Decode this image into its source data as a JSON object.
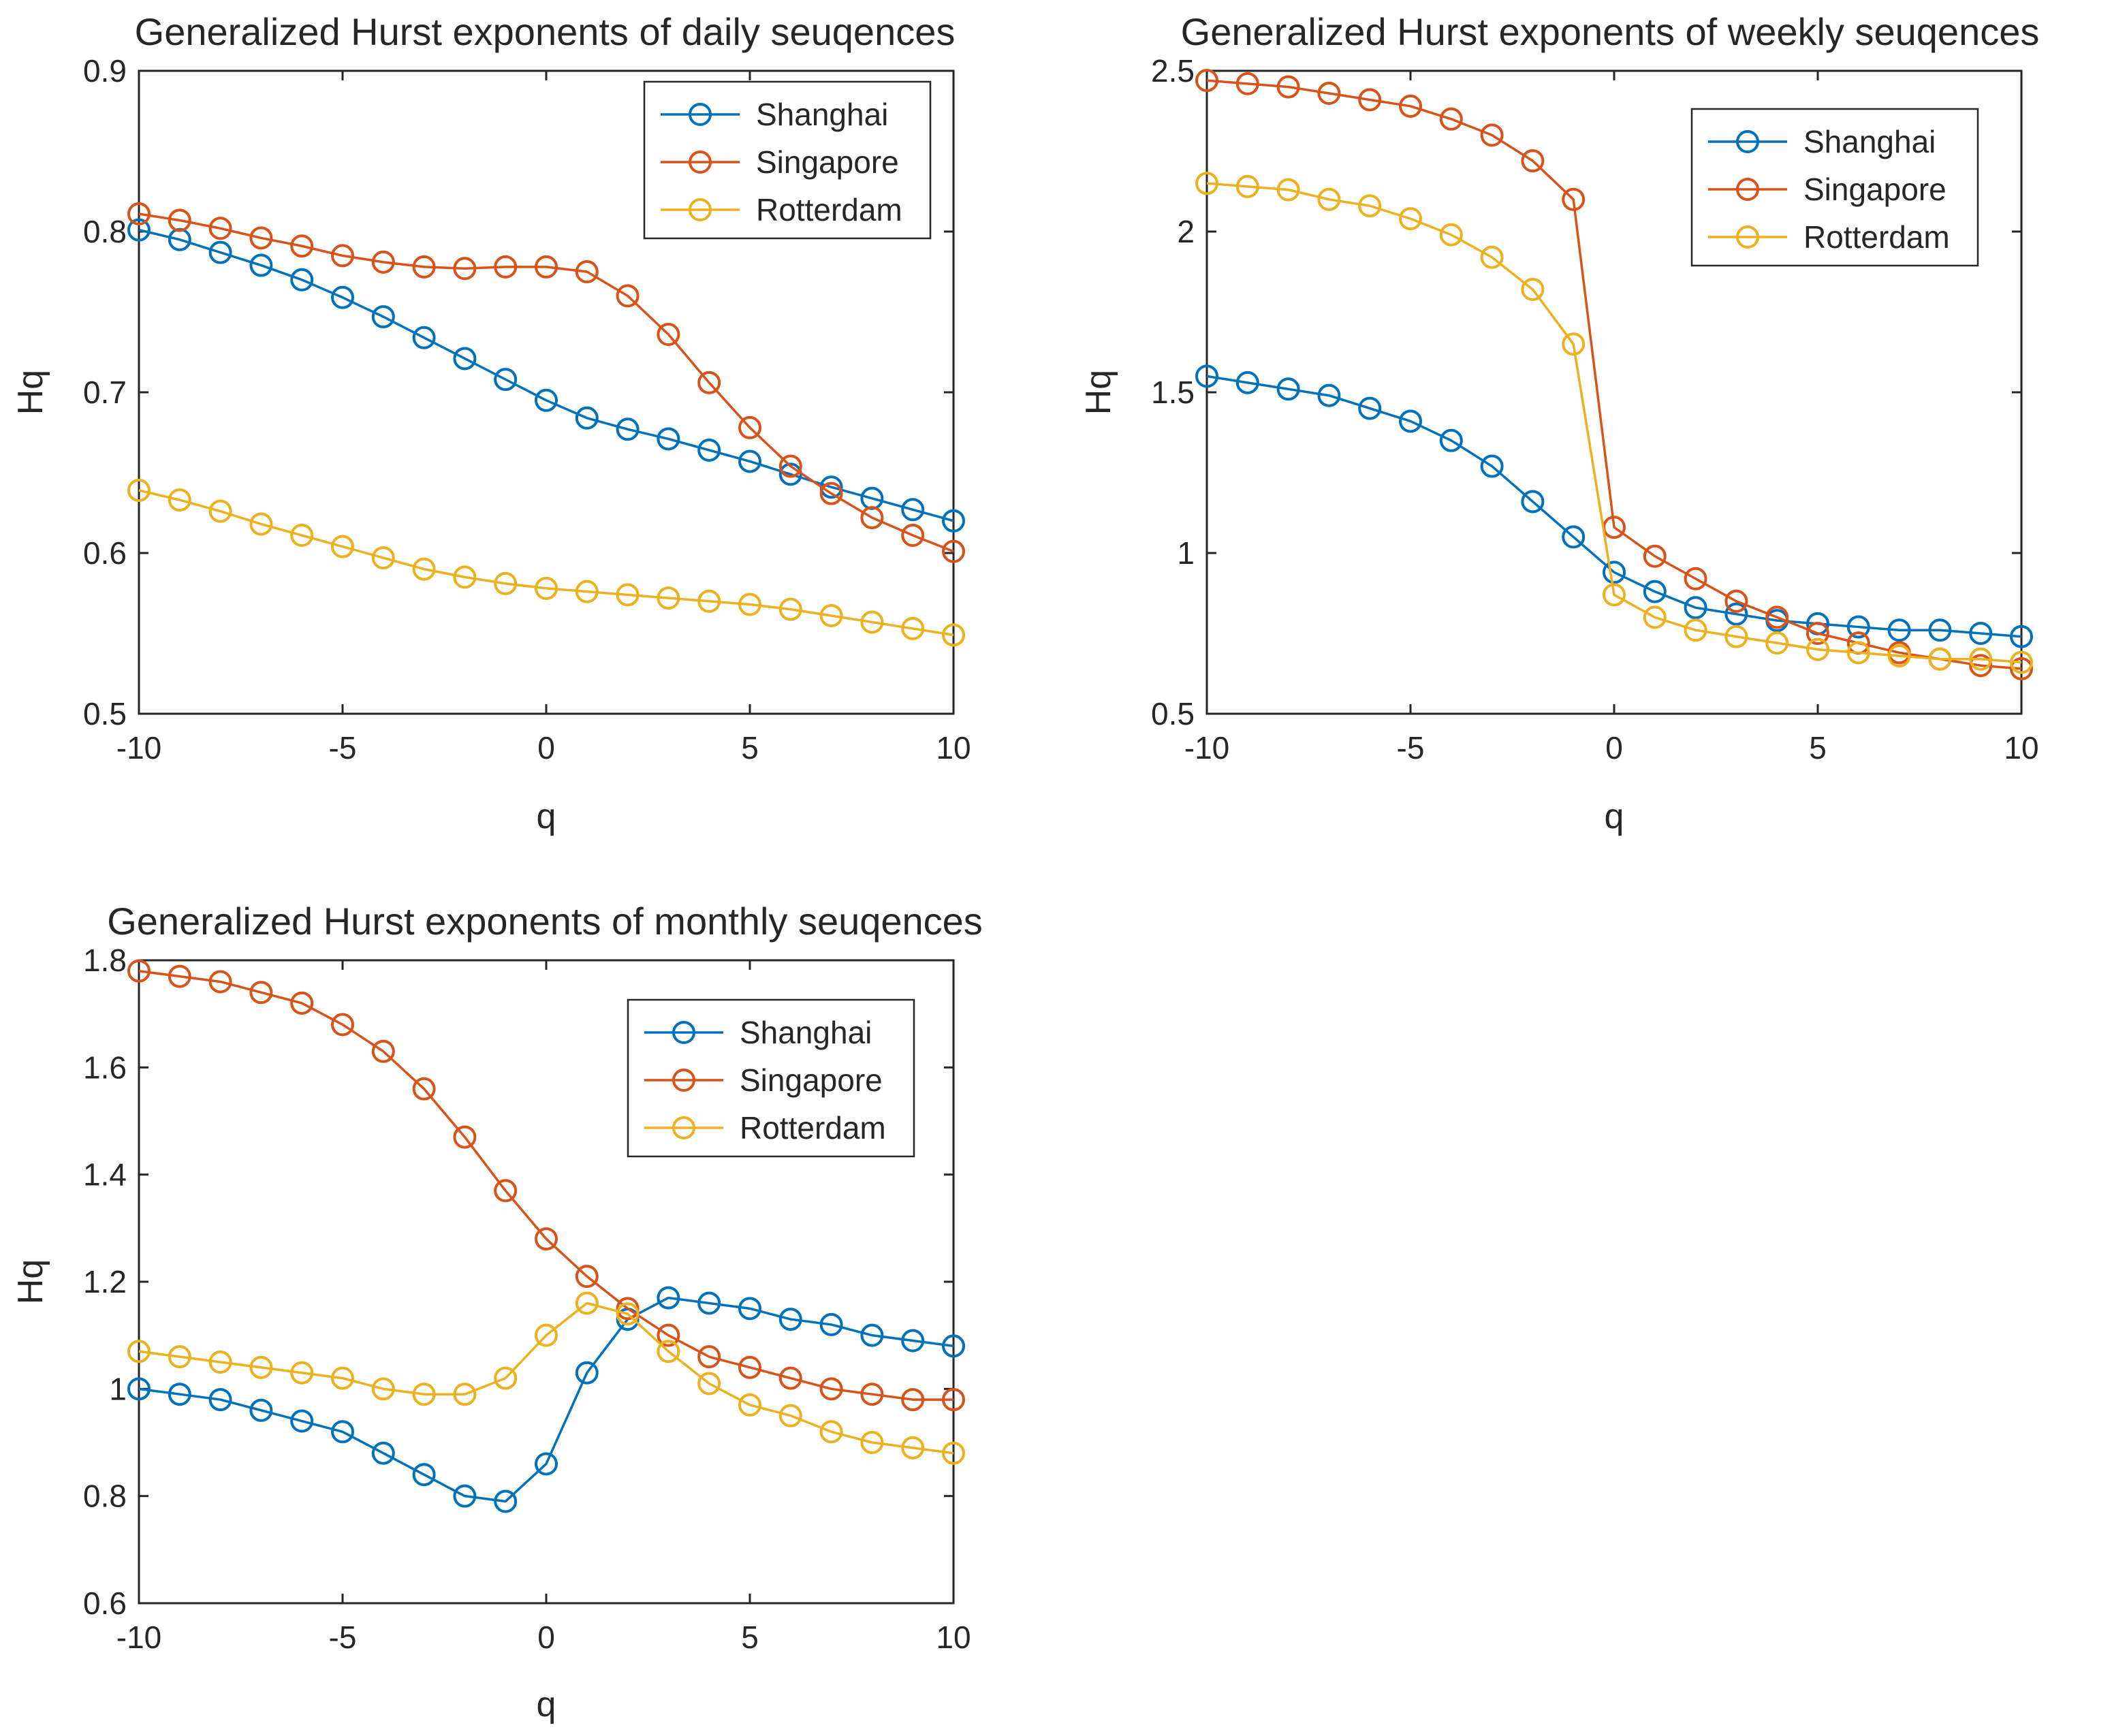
{
  "colors": {
    "shanghai": "#0072BD",
    "singapore": "#D95319",
    "rotterdam": "#EDB120",
    "axis": "#262626",
    "background": "#ffffff"
  },
  "chart_data": [
    {
      "id": "daily",
      "type": "line",
      "marker": "circle",
      "title": "Generalized Hurst exponents of daily seuqences",
      "xlabel": "q",
      "ylabel": "Hq",
      "xlim": [
        -10,
        10
      ],
      "ylim": [
        0.5,
        0.9
      ],
      "xticks": [
        -10,
        -5,
        0,
        5,
        10
      ],
      "xtick_labels": [
        "-10",
        "-5",
        "0",
        "5",
        "10"
      ],
      "yticks": [
        0.5,
        0.6,
        0.7,
        0.8,
        0.9
      ],
      "ytick_labels": [
        "0.5",
        "0.6",
        "0.7",
        "0.8",
        "0.9"
      ],
      "grid": false,
      "legend_position": "top-right",
      "x": [
        -10,
        -9,
        -8,
        -7,
        -6,
        -5,
        -4,
        -3,
        -2,
        -1,
        0,
        1,
        2,
        3,
        4,
        5,
        6,
        7,
        8,
        9,
        10
      ],
      "series": [
        {
          "name": "Shanghai",
          "color_key": "shanghai",
          "values": [
            0.801,
            0.795,
            0.787,
            0.779,
            0.77,
            0.759,
            0.747,
            0.734,
            0.721,
            0.708,
            0.695,
            0.684,
            0.677,
            0.671,
            0.664,
            0.657,
            0.649,
            0.641,
            0.634,
            0.627,
            0.62
          ]
        },
        {
          "name": "Singapore",
          "color_key": "singapore",
          "values": [
            0.811,
            0.807,
            0.802,
            0.796,
            0.791,
            0.785,
            0.781,
            0.778,
            0.777,
            0.778,
            0.778,
            0.775,
            0.76,
            0.736,
            0.706,
            0.678,
            0.654,
            0.637,
            0.622,
            0.611,
            0.601
          ]
        },
        {
          "name": "Rotterdam",
          "color_key": "rotterdam",
          "values": [
            0.639,
            0.633,
            0.626,
            0.618,
            0.611,
            0.604,
            0.597,
            0.59,
            0.585,
            0.581,
            0.578,
            0.576,
            0.574,
            0.572,
            0.57,
            0.568,
            0.565,
            0.561,
            0.557,
            0.553,
            0.549
          ]
        }
      ]
    },
    {
      "id": "weekly",
      "type": "line",
      "marker": "circle",
      "title": "Generalized Hurst exponents of weekly seuqences",
      "xlabel": "q",
      "ylabel": "Hq",
      "xlim": [
        -10,
        10
      ],
      "ylim": [
        0.5,
        2.5
      ],
      "xticks": [
        -10,
        -5,
        0,
        5,
        10
      ],
      "xtick_labels": [
        "-10",
        "-5",
        "0",
        "5",
        "10"
      ],
      "yticks": [
        0.5,
        1,
        1.5,
        2,
        2.5
      ],
      "ytick_labels": [
        "0.5",
        "1",
        "1.5",
        "2",
        "2.5"
      ],
      "grid": false,
      "legend_position": "top-right",
      "x": [
        -10,
        -9,
        -8,
        -7,
        -6,
        -5,
        -4,
        -3,
        -2,
        -1,
        0,
        1,
        2,
        3,
        4,
        5,
        6,
        7,
        8,
        9,
        10
      ],
      "series": [
        {
          "name": "Shanghai",
          "color_key": "shanghai",
          "values": [
            1.55,
            1.53,
            1.51,
            1.49,
            1.45,
            1.41,
            1.35,
            1.27,
            1.16,
            1.05,
            0.94,
            0.88,
            0.83,
            0.81,
            0.79,
            0.78,
            0.77,
            0.76,
            0.76,
            0.75,
            0.74
          ]
        },
        {
          "name": "Singapore",
          "color_key": "singapore",
          "values": [
            2.47,
            2.46,
            2.45,
            2.43,
            2.41,
            2.39,
            2.35,
            2.3,
            2.22,
            2.1,
            1.08,
            0.99,
            0.92,
            0.85,
            0.8,
            0.75,
            0.72,
            0.69,
            0.67,
            0.65,
            0.64
          ]
        },
        {
          "name": "Rotterdam",
          "color_key": "rotterdam",
          "values": [
            2.15,
            2.14,
            2.13,
            2.1,
            2.08,
            2.04,
            1.99,
            1.92,
            1.82,
            1.65,
            0.87,
            0.8,
            0.76,
            0.74,
            0.72,
            0.7,
            0.69,
            0.68,
            0.67,
            0.67,
            0.66
          ]
        }
      ]
    },
    {
      "id": "monthly",
      "type": "line",
      "marker": "circle",
      "title": "Generalized Hurst exponents of monthly seuqences",
      "xlabel": "q",
      "ylabel": "Hq",
      "xlim": [
        -10,
        10
      ],
      "ylim": [
        0.6,
        1.8
      ],
      "xticks": [
        -10,
        -5,
        0,
        5,
        10
      ],
      "xtick_labels": [
        "-10",
        "-5",
        "0",
        "5",
        "10"
      ],
      "yticks": [
        0.6,
        0.8,
        1,
        1.2,
        1.4,
        1.6,
        1.8
      ],
      "ytick_labels": [
        "0.6",
        "0.8",
        "1",
        "1.2",
        "1.4",
        "1.6",
        "1.8"
      ],
      "grid": false,
      "legend_position": "top-right",
      "x": [
        -10,
        -9,
        -8,
        -7,
        -6,
        -5,
        -4,
        -3,
        -2,
        -1,
        0,
        1,
        2,
        3,
        4,
        5,
        6,
        7,
        8,
        9,
        10
      ],
      "series": [
        {
          "name": "Shanghai",
          "color_key": "shanghai",
          "values": [
            1.0,
            0.99,
            0.98,
            0.96,
            0.94,
            0.92,
            0.88,
            0.84,
            0.8,
            0.79,
            0.86,
            1.03,
            1.13,
            1.17,
            1.16,
            1.15,
            1.13,
            1.12,
            1.1,
            1.09,
            1.08
          ]
        },
        {
          "name": "Singapore",
          "color_key": "singapore",
          "values": [
            1.78,
            1.77,
            1.76,
            1.74,
            1.72,
            1.68,
            1.63,
            1.56,
            1.47,
            1.37,
            1.28,
            1.21,
            1.15,
            1.1,
            1.06,
            1.04,
            1.02,
            1.0,
            0.99,
            0.98,
            0.98
          ]
        },
        {
          "name": "Rotterdam",
          "color_key": "rotterdam",
          "values": [
            1.07,
            1.06,
            1.05,
            1.04,
            1.03,
            1.02,
            1.0,
            0.99,
            0.99,
            1.02,
            1.1,
            1.16,
            1.14,
            1.07,
            1.01,
            0.97,
            0.95,
            0.92,
            0.9,
            0.89,
            0.88
          ]
        }
      ]
    }
  ]
}
